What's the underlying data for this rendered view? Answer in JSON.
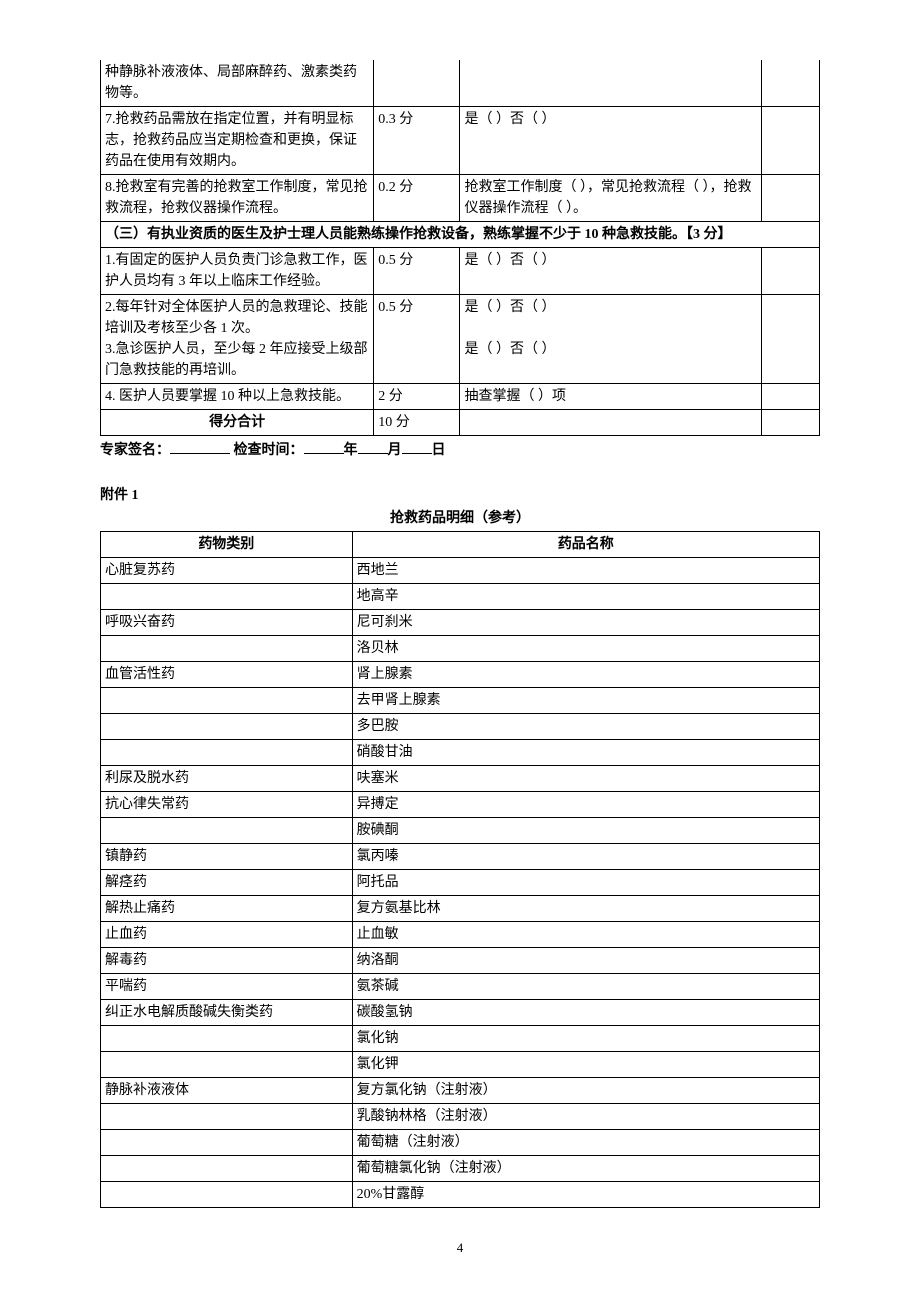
{
  "table1": {
    "rows": [
      {
        "item": "种静脉补液液体、局部麻醉药、激素类药物等。",
        "score": "",
        "check": "",
        "last": "",
        "noTop": true
      },
      {
        "item": "7.抢救药品需放在指定位置，并有明显标志，抢救药品应当定期检查和更换，保证药品在使用有效期内。",
        "score": "0.3 分",
        "check": "是（ ）否（ ）",
        "last": ""
      },
      {
        "item": "8.抢救室有完善的抢救室工作制度，常见抢救流程，抢救仪器操作流程。",
        "score": "0.2 分",
        "check": "抢救室工作制度（ ），常见抢救流程（ ），抢救仪器操作流程（ ）。",
        "last": ""
      }
    ],
    "sectionHeader": "（三）有执业资质的医生及护士理人员能熟练操作抢救设备，熟练掌握不少于 10 种急救技能。【3 分】",
    "rows2": [
      {
        "item": "1.有固定的医护人员负责门诊急救工作，医护人员均有 3 年以上临床工作经验。",
        "score": "0.5 分",
        "check": "是（ ）否（ ）",
        "last": ""
      },
      {
        "item": "2.每年针对全体医护人员的急救理论、技能培训及考核至少各 1 次。\n3.急诊医护人员，至少每 2 年应接受上级部门急救技能的再培训。",
        "score": "0.5 分",
        "check": "是（ ）否（ ）\n\n是（ ）否（ ）",
        "last": ""
      },
      {
        "item": "4. 医护人员要掌握 10 种以上急救技能。",
        "score": "2 分",
        "check": "抽查掌握（ ）项",
        "last": ""
      }
    ],
    "total": {
      "label": "得分合计",
      "score": "10 分",
      "check": "",
      "last": ""
    }
  },
  "signature": {
    "expert": "专家签名：",
    "time": "检查时间：",
    "year": "年",
    "month": "月",
    "day": "日"
  },
  "attachment": {
    "label": "附件 1",
    "title": "抢救药品明细（参考）",
    "headers": {
      "cat": "药物类别",
      "name": "药品名称"
    },
    "rows": [
      {
        "cat": "心脏复苏药",
        "name": "西地兰"
      },
      {
        "cat": "",
        "name": "地高辛"
      },
      {
        "cat": "呼吸兴奋药",
        "name": "尼可刹米"
      },
      {
        "cat": "",
        "name": "洛贝林"
      },
      {
        "cat": "血管活性药",
        "name": "肾上腺素"
      },
      {
        "cat": "",
        "name": "去甲肾上腺素"
      },
      {
        "cat": "",
        "name": "多巴胺"
      },
      {
        "cat": "",
        "name": "硝酸甘油"
      },
      {
        "cat": "利尿及脱水药",
        "name": "呋塞米"
      },
      {
        "cat": "抗心律失常药",
        "name": "异搏定"
      },
      {
        "cat": "",
        "name": "胺碘酮"
      },
      {
        "cat": "镇静药",
        "name": "氯丙嗪"
      },
      {
        "cat": "解痉药",
        "name": "阿托品"
      },
      {
        "cat": "解热止痛药",
        "name": "复方氨基比林"
      },
      {
        "cat": "止血药",
        "name": "止血敏"
      },
      {
        "cat": "解毒药",
        "name": "纳洛酮"
      },
      {
        "cat": "平喘药",
        "name": "氨茶碱"
      },
      {
        "cat": "纠正水电解质酸碱失衡类药",
        "name": "碳酸氢钠"
      },
      {
        "cat": "",
        "name": "氯化钠"
      },
      {
        "cat": "",
        "name": "氯化钾"
      },
      {
        "cat": "静脉补液液体",
        "name": "复方氯化钠（注射液）"
      },
      {
        "cat": "",
        "name": "乳酸钠林格（注射液）"
      },
      {
        "cat": "",
        "name": "葡萄糖（注射液）"
      },
      {
        "cat": "",
        "name": "葡萄糖氯化钠（注射液）"
      },
      {
        "cat": "",
        "name": "20%甘露醇"
      }
    ]
  },
  "pageNumber": "4"
}
